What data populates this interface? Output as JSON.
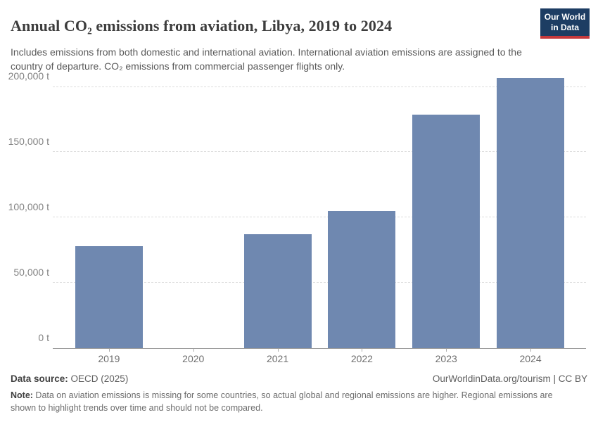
{
  "header": {
    "title": "Annual CO₂ emissions from aviation, Libya, 2019 to 2024",
    "subtitle": "Includes emissions from both domestic and international aviation. International aviation emissions are assigned to the country of departure. CO₂ emissions from commercial passenger flights only.",
    "logo": {
      "line1": "Our World",
      "line2": "in Data"
    }
  },
  "chart_data": {
    "type": "bar",
    "categories": [
      "2019",
      "2020",
      "2021",
      "2022",
      "2023",
      "2024"
    ],
    "values": [
      78000,
      null,
      87000,
      105000,
      179000,
      207000
    ],
    "title": "Annual CO₂ emissions from aviation, Libya, 2019 to 2024",
    "xlabel": "",
    "ylabel": "",
    "unit": "t",
    "ylim": [
      0,
      210000
    ],
    "yticks": [
      0,
      50000,
      100000,
      150000,
      200000
    ],
    "ytick_labels": [
      "0 t",
      "50,000 t",
      "100,000 t",
      "150,000 t",
      "200,000 t"
    ],
    "grid": "horizontal-dashed",
    "legend": "none",
    "bar_color": "#6f88b0",
    "missing_years": [
      "2020"
    ]
  },
  "footer": {
    "source_label": "Data source:",
    "source_value": " OECD (2025)",
    "attribution": "OurWorldinData.org/tourism | CC BY",
    "note_label": "Note:",
    "note_text": " Data on aviation emissions is missing for some countries, so actual global and regional emissions are higher. Regional emissions are shown to highlight trends over time and should not be compared."
  },
  "colors": {
    "bar": "#6f88b0",
    "logo_bg": "#1d3d63",
    "logo_accent": "#c5393c",
    "gridline": "#dcdcdc",
    "axis": "#9e9e9e"
  }
}
